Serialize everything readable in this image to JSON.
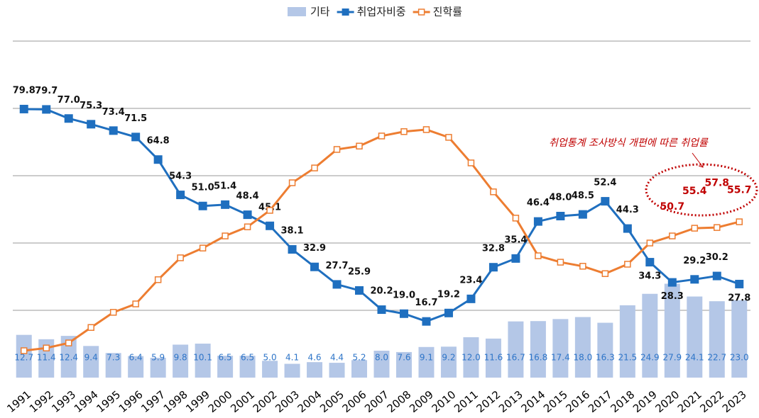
{
  "chart_data": {
    "type": "bar-line",
    "categories": [
      "1991",
      "1992",
      "1993",
      "1994",
      "1995",
      "1996",
      "1997",
      "1998",
      "1999",
      "2000",
      "2001",
      "2002",
      "2003",
      "2004",
      "2005",
      "2006",
      "2007",
      "2008",
      "2009",
      "2010",
      "2011",
      "2012",
      "2013",
      "2014",
      "2015",
      "2016",
      "2017",
      "2018",
      "2019",
      "2020",
      "2021",
      "2022",
      "2023"
    ],
    "ylim": [
      0,
      100
    ],
    "yticks": [
      0,
      20,
      40,
      60,
      80,
      100
    ],
    "grid": true,
    "legend": "top",
    "series": [
      {
        "name": "기타",
        "kind": "bar",
        "color": "#b4c7e7",
        "values": [
          12.7,
          11.4,
          12.4,
          9.4,
          7.3,
          6.4,
          5.9,
          9.8,
          10.1,
          6.5,
          6.5,
          5.0,
          4.1,
          4.6,
          4.4,
          5.2,
          8.0,
          7.6,
          9.1,
          9.2,
          12.0,
          11.6,
          16.7,
          16.8,
          17.4,
          18.0,
          16.3,
          21.5,
          24.9,
          27.9,
          24.1,
          22.7,
          23.0
        ],
        "value_labels": [
          "12.7",
          "11.4",
          "12.4",
          "9.4",
          "7.3",
          "6.4",
          "5.9",
          "9.8",
          "10.1",
          "6.5",
          "6.5",
          "5.0",
          "4.1",
          "4.6",
          "4.4",
          "5.2",
          "8.0",
          "7.6",
          "9.1",
          "9.2",
          "12.0",
          "11.6",
          "16.7",
          "16.8",
          "17.4",
          "18.0",
          "16.3",
          "21.5",
          "24.9",
          "27.9",
          "24.1",
          "22.7",
          "23.0"
        ]
      },
      {
        "name": "취업자비중",
        "kind": "line",
        "color": "#1f6fbf",
        "values": [
          79.8,
          79.7,
          77.0,
          75.3,
          73.4,
          71.5,
          64.8,
          54.3,
          51.0,
          51.4,
          48.4,
          45.1,
          38.1,
          32.9,
          27.7,
          25.9,
          20.2,
          19.0,
          16.7,
          19.2,
          23.4,
          32.8,
          35.4,
          46.4,
          48.0,
          48.5,
          52.4,
          44.3,
          34.3,
          28.3,
          29.2,
          30.2,
          27.8
        ],
        "value_labels": [
          "79.8",
          "79.7",
          "77.0",
          "75.3",
          "73.4",
          "71.5",
          "64.8",
          "54.3",
          "51.0",
          "51.4",
          "48.4",
          "45.1",
          "38.1",
          "32.9",
          "27.7",
          "25.9",
          "20.2",
          "19.0",
          "16.7",
          "19.2",
          "23.4",
          "32.8",
          "35.4",
          "46.4",
          "48.0",
          "48.5",
          "52.4",
          "44.3",
          "34.3",
          "28.3",
          "29.2",
          "30.2",
          "27.8"
        ]
      },
      {
        "name": "진학률",
        "kind": "line",
        "color": "#ed7d31",
        "values": [
          8.0,
          8.8,
          10.3,
          14.9,
          19.4,
          21.9,
          29.1,
          35.6,
          38.5,
          42.1,
          44.8,
          49.7,
          57.9,
          62.3,
          67.8,
          68.8,
          71.8,
          73.1,
          73.7,
          71.4,
          63.8,
          55.2,
          47.4,
          36.2,
          34.3,
          33.1,
          30.9,
          33.7,
          40.0,
          42.1,
          44.4,
          44.6,
          46.3
        ]
      }
    ],
    "annotation": {
      "text": "취업통계 조사방식 개편에 따른 취업률",
      "color": "#c00000",
      "categories": [
        "2020",
        "2021",
        "2022",
        "2023"
      ],
      "values": [
        50.7,
        55.4,
        57.8,
        55.7
      ],
      "value_labels": [
        "50.7",
        "55.4",
        "57.8",
        "55.7"
      ]
    }
  }
}
